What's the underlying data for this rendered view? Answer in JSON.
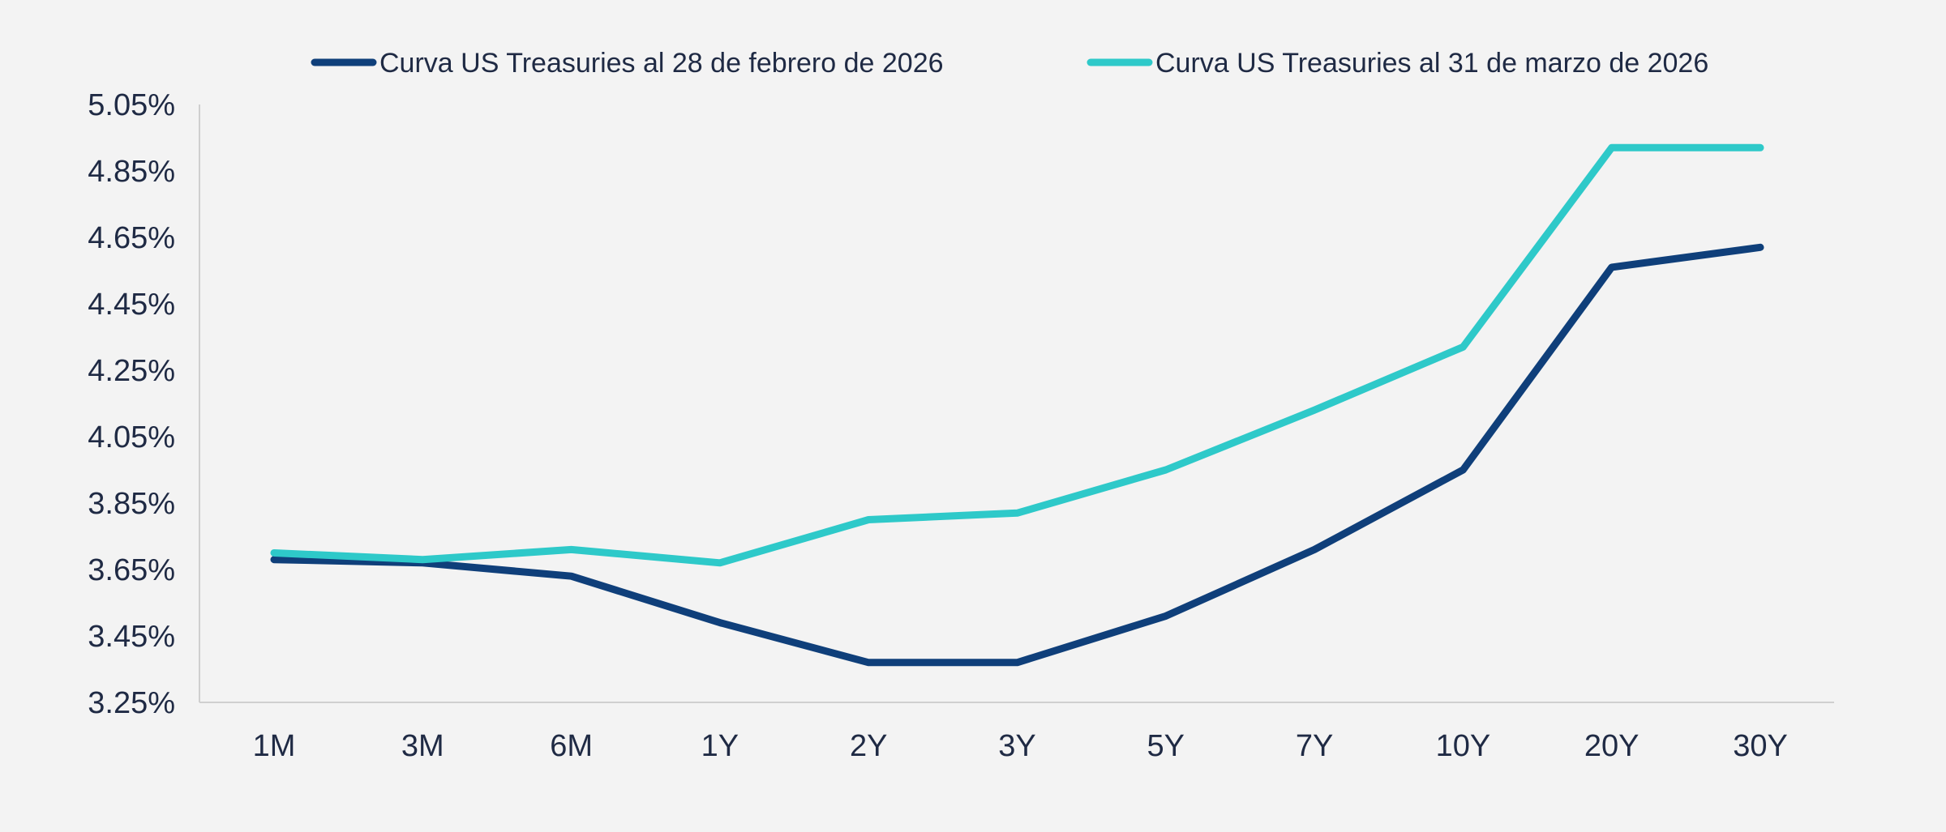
{
  "chart_data": {
    "type": "line",
    "title": "",
    "xlabel": "",
    "ylabel": "",
    "categories": [
      "1M",
      "3M",
      "6M",
      "1Y",
      "2Y",
      "3Y",
      "5Y",
      "7Y",
      "10Y",
      "20Y",
      "30Y"
    ],
    "y_tick_labels": [
      "5.05%",
      "4.85%",
      "4.65%",
      "4.45%",
      "4.25%",
      "4.05%",
      "3.85%",
      "3.65%",
      "3.45%",
      "3.25%"
    ],
    "y_ticks": [
      5.05,
      4.85,
      4.65,
      4.45,
      4.25,
      4.05,
      3.85,
      3.65,
      3.45,
      3.25
    ],
    "ylim": [
      3.25,
      5.05
    ],
    "grid": false,
    "legend_position": "top",
    "series": [
      {
        "name": "Curva US Treasuries al 28 de febrero de 2026",
        "color": "#0f3f7a",
        "values": [
          3.68,
          3.67,
          3.63,
          3.49,
          3.37,
          3.37,
          3.51,
          3.71,
          3.95,
          4.56,
          4.62
        ]
      },
      {
        "name": "Curva US Treasuries al 31 de marzo de 2026",
        "color": "#2ec9c9",
        "values": [
          3.7,
          3.68,
          3.71,
          3.67,
          3.8,
          3.82,
          3.95,
          4.13,
          4.32,
          4.92,
          4.92
        ]
      }
    ]
  }
}
